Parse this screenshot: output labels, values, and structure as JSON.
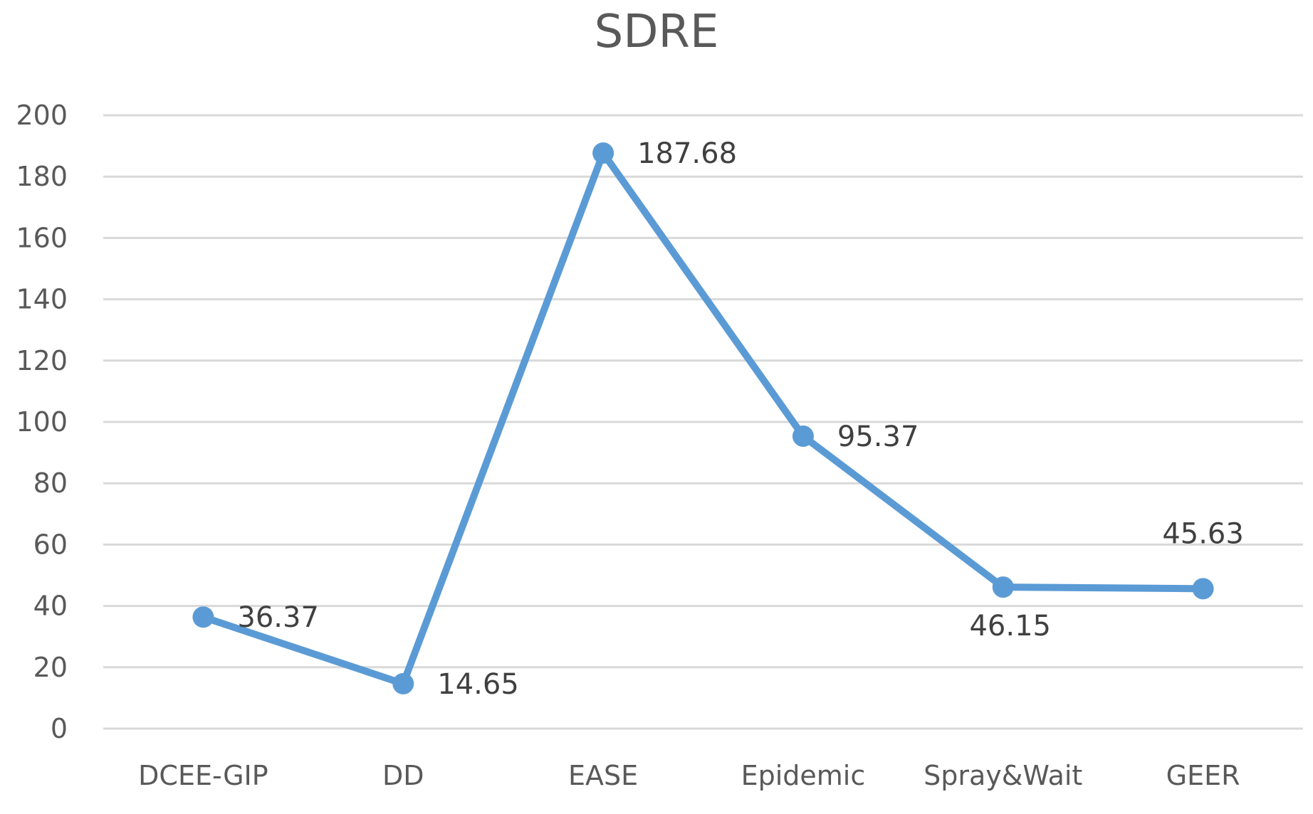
{
  "chart_data": {
    "type": "line",
    "title": "SDRE",
    "xlabel": "",
    "ylabel": "",
    "categories": [
      "DCEE-GIP",
      "DD",
      "EASE",
      "Epidemic",
      "Spray&Wait",
      "GEER"
    ],
    "series": [
      {
        "name": "SDRE",
        "values": [
          36.37,
          14.65,
          187.68,
          95.37,
          46.15,
          45.63
        ]
      }
    ],
    "data_labels": [
      "36.37",
      "14.65",
      "187.68",
      "95.37",
      "46.15",
      "45.63"
    ],
    "ylim": [
      0,
      200
    ],
    "yticks": [
      0,
      20,
      40,
      60,
      80,
      100,
      120,
      140,
      160,
      180,
      200
    ],
    "grid": true,
    "legend": "none",
    "colors": {
      "line": "#5B9BD5",
      "grid": "#D9D9D9",
      "text": "#595959"
    }
  }
}
